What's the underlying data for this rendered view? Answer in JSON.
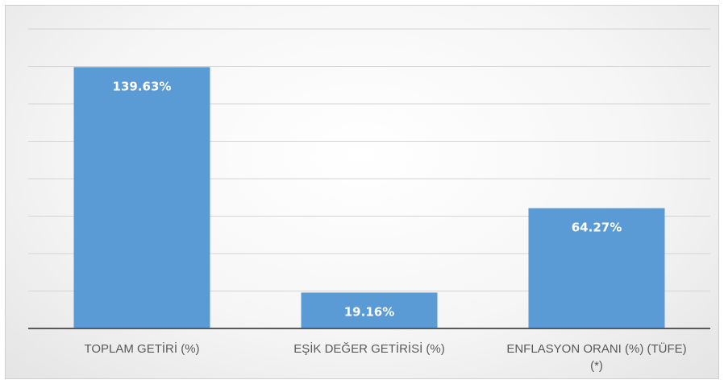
{
  "chart_data": {
    "type": "bar",
    "categories": [
      [
        "TOPLAM GETİRİ (%)"
      ],
      [
        "EŞİK DEĞER GETİRİSİ (%)"
      ],
      [
        "ENFLASYON ORANI (%) (TÜFE)",
        "(*)"
      ]
    ],
    "values": [
      139.63,
      19.16,
      64.27
    ],
    "data_labels": [
      "139.63%",
      "19.16%",
      "64.27%"
    ],
    "ylim": [
      0,
      160
    ],
    "grid": true,
    "bar_color": "#5b9bd5",
    "title": "",
    "xlabel": "",
    "ylabel": ""
  }
}
